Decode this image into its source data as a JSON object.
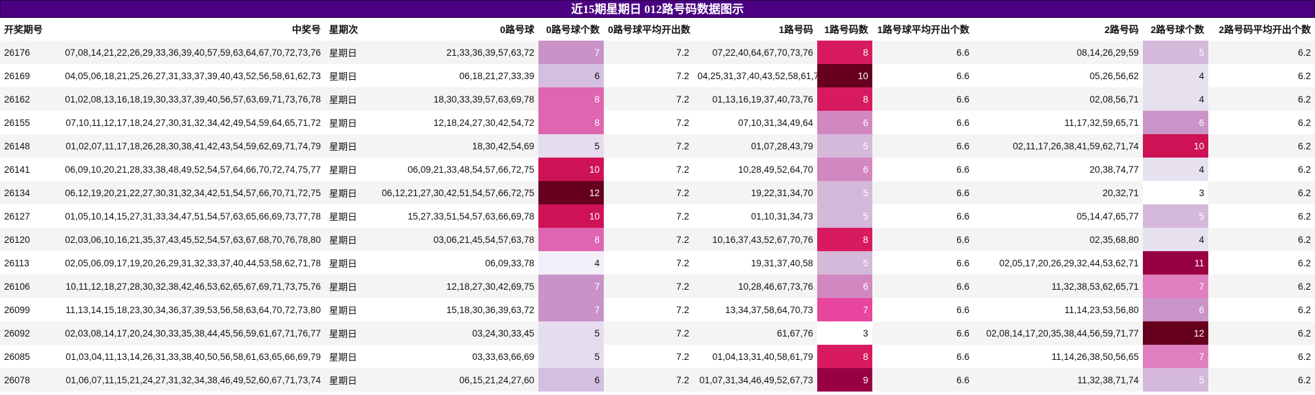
{
  "title": "近15期星期日 012路号码数据图示",
  "headers": [
    "开奖期号",
    "中奖号",
    "星期次",
    "0路号球",
    "0路号球个数",
    "0路号球平均开出数",
    "1路号码",
    "1路号码数",
    "1路号球平均开出个数",
    "2路号码",
    "2路号球个数",
    "2路号码平均开出个数"
  ],
  "rows": [
    {
      "period": "26176",
      "winning": "07,08,14,21,22,26,29,33,36,39,40,57,59,63,64,67,70,72,73,76",
      "weekday": "星期日",
      "r0": "21,33,36,39,57,63,72",
      "c0": "7",
      "a0": "7.2",
      "r1": "07,22,40,64,67,70,73,76",
      "c1": "8",
      "a1": "6.6",
      "r2": "08,14,26,29,59",
      "c2": "5",
      "a2": "6.2"
    },
    {
      "period": "26169",
      "winning": "04,05,06,18,21,25,26,27,31,33,37,39,40,43,52,56,58,61,62,73",
      "weekday": "星期日",
      "r0": "06,18,21,27,33,39",
      "c0": "6",
      "a0": "7.2",
      "r1": "04,25,31,37,40,43,52,58,61,73",
      "c1": "10",
      "a1": "6.6",
      "r2": "05,26,56,62",
      "c2": "4",
      "a2": "6.2"
    },
    {
      "period": "26162",
      "winning": "01,02,08,13,16,18,19,30,33,37,39,40,56,57,63,69,71,73,76,78",
      "weekday": "星期日",
      "r0": "18,30,33,39,57,63,69,78",
      "c0": "8",
      "a0": "7.2",
      "r1": "01,13,16,19,37,40,73,76",
      "c1": "8",
      "a1": "6.6",
      "r2": "02,08,56,71",
      "c2": "4",
      "a2": "6.2"
    },
    {
      "period": "26155",
      "winning": "07,10,11,12,17,18,24,27,30,31,32,34,42,49,54,59,64,65,71,72",
      "weekday": "星期日",
      "r0": "12,18,24,27,30,42,54,72",
      "c0": "8",
      "a0": "7.2",
      "r1": "07,10,31,34,49,64",
      "c1": "6",
      "a1": "6.6",
      "r2": "11,17,32,59,65,71",
      "c2": "6",
      "a2": "6.2"
    },
    {
      "period": "26148",
      "winning": "01,02,07,11,17,18,26,28,30,38,41,42,43,54,59,62,69,71,74,79",
      "weekday": "星期日",
      "r0": "18,30,42,54,69",
      "c0": "5",
      "a0": "7.2",
      "r1": "01,07,28,43,79",
      "c1": "5",
      "a1": "6.6",
      "r2": "02,11,17,26,38,41,59,62,71,74",
      "c2": "10",
      "a2": "6.2"
    },
    {
      "period": "26141",
      "winning": "06,09,10,20,21,28,33,38,48,49,52,54,57,64,66,70,72,74,75,77",
      "weekday": "星期日",
      "r0": "06,09,21,33,48,54,57,66,72,75",
      "c0": "10",
      "a0": "7.2",
      "r1": "10,28,49,52,64,70",
      "c1": "6",
      "a1": "6.6",
      "r2": "20,38,74,77",
      "c2": "4",
      "a2": "6.2"
    },
    {
      "period": "26134",
      "winning": "06,12,19,20,21,22,27,30,31,32,34,42,51,54,57,66,70,71,72,75",
      "weekday": "星期日",
      "r0": "06,12,21,27,30,42,51,54,57,66,72,75",
      "c0": "12",
      "a0": "7.2",
      "r1": "19,22,31,34,70",
      "c1": "5",
      "a1": "6.6",
      "r2": "20,32,71",
      "c2": "3",
      "a2": "6.2"
    },
    {
      "period": "26127",
      "winning": "01,05,10,14,15,27,31,33,34,47,51,54,57,63,65,66,69,73,77,78",
      "weekday": "星期日",
      "r0": "15,27,33,51,54,57,63,66,69,78",
      "c0": "10",
      "a0": "7.2",
      "r1": "01,10,31,34,73",
      "c1": "5",
      "a1": "6.6",
      "r2": "05,14,47,65,77",
      "c2": "5",
      "a2": "6.2"
    },
    {
      "period": "26120",
      "winning": "02,03,06,10,16,21,35,37,43,45,52,54,57,63,67,68,70,76,78,80",
      "weekday": "星期日",
      "r0": "03,06,21,45,54,57,63,78",
      "c0": "8",
      "a0": "7.2",
      "r1": "10,16,37,43,52,67,70,76",
      "c1": "8",
      "a1": "6.6",
      "r2": "02,35,68,80",
      "c2": "4",
      "a2": "6.2"
    },
    {
      "period": "26113",
      "winning": "02,05,06,09,17,19,20,26,29,31,32,33,37,40,44,53,58,62,71,78",
      "weekday": "星期日",
      "r0": "06,09,33,78",
      "c0": "4",
      "a0": "7.2",
      "r1": "19,31,37,40,58",
      "c1": "5",
      "a1": "6.6",
      "r2": "02,05,17,20,26,29,32,44,53,62,71",
      "c2": "11",
      "a2": "6.2"
    },
    {
      "period": "26106",
      "winning": "10,11,12,18,27,28,30,32,38,42,46,53,62,65,67,69,71,73,75,76",
      "weekday": "星期日",
      "r0": "12,18,27,30,42,69,75",
      "c0": "7",
      "a0": "7.2",
      "r1": "10,28,46,67,73,76",
      "c1": "6",
      "a1": "6.6",
      "r2": "11,32,38,53,62,65,71",
      "c2": "7",
      "a2": "6.2"
    },
    {
      "period": "26099",
      "winning": "11,13,14,15,18,23,30,34,36,37,39,53,56,58,63,64,70,72,73,80",
      "weekday": "星期日",
      "r0": "15,18,30,36,39,63,72",
      "c0": "7",
      "a0": "7.2",
      "r1": "13,34,37,58,64,70,73",
      "c1": "7",
      "a1": "6.6",
      "r2": "11,14,23,53,56,80",
      "c2": "6",
      "a2": "6.2"
    },
    {
      "period": "26092",
      "winning": "02,03,08,14,17,20,24,30,33,35,38,44,45,56,59,61,67,71,76,77",
      "weekday": "星期日",
      "r0": "03,24,30,33,45",
      "c0": "5",
      "a0": "7.2",
      "r1": "61,67,76",
      "c1": "3",
      "a1": "6.6",
      "r2": "02,08,14,17,20,35,38,44,56,59,71,77",
      "c2": "12",
      "a2": "6.2"
    },
    {
      "period": "26085",
      "winning": "01,03,04,11,13,14,26,31,33,38,40,50,56,58,61,63,65,66,69,79",
      "weekday": "星期日",
      "r0": "03,33,63,66,69",
      "c0": "5",
      "a0": "7.2",
      "r1": "01,04,13,31,40,58,61,79",
      "c1": "8",
      "a1": "6.6",
      "r2": "11,14,26,38,50,56,65",
      "c2": "7",
      "a2": "6.2"
    },
    {
      "period": "26078",
      "winning": "01,06,07,11,15,21,24,27,31,32,34,38,46,49,52,60,67,71,73,74",
      "weekday": "星期日",
      "r0": "06,15,21,24,27,60",
      "c0": "6",
      "a0": "7.2",
      "r1": "01,07,31,34,46,49,52,67,73",
      "c1": "9",
      "a1": "6.6",
      "r2": "11,32,38,71,74",
      "c2": "5",
      "a2": "6.2"
    }
  ],
  "heat_colors": {
    "3": "#ffffff",
    "4": "#f3eff8",
    "5": "#e5dcee",
    "6": "#d5bfe0",
    "7": "#c993c7",
    "8": "#df65b0",
    "9": "#ce1256",
    "10": "#ce1256",
    "11": "#980043",
    "12": "#67001f"
  },
  "heat_colors_c1": {
    "3": "#ffffff",
    "5": "#d4b9da",
    "6": "#d287c0",
    "7": "#e7459e",
    "8": "#d81b60",
    "9": "#980043",
    "10": "#67001f"
  },
  "heat_colors_c2": {
    "3": "#ffffff",
    "4": "#e7e1ef",
    "5": "#d4b9da",
    "6": "#c994c7",
    "7": "#df7fbf",
    "10": "#ce1256",
    "11": "#980043",
    "12": "#67001f"
  }
}
